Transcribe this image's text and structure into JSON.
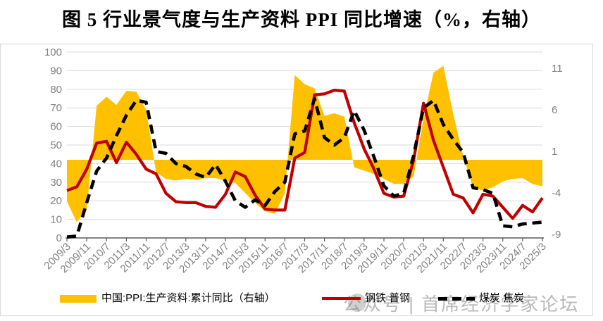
{
  "title": "图 5 行业景气度与生产资料 PPI 同比增速（%，右轴）",
  "watermark": {
    "text": "公众号 | 首席经济学家论坛"
  },
  "legend": [
    {
      "label": "中国:PPI:生产资料:累计同比（右轴）",
      "type": "area",
      "color": "#FFC000"
    },
    {
      "label": "钢铁 普钢",
      "type": "line",
      "color": "#C00000"
    },
    {
      "label": "煤炭 焦炭",
      "type": "dashed-line",
      "color": "#000000"
    }
  ],
  "chart_data": {
    "type": "combo",
    "title": "图 5 行业景气度与生产资料 PPI 同比增速（%，右轴）",
    "grid": true,
    "legend_position": "bottom",
    "x": [
      "2009/3",
      "2009/7",
      "2009/11",
      "2010/3",
      "2010/7",
      "2010/11",
      "2011/3",
      "2011/7",
      "2011/11",
      "2012/3",
      "2012/7",
      "2012/11",
      "2013/3",
      "2013/7",
      "2013/11",
      "2014/3",
      "2014/7",
      "2014/11",
      "2015/3",
      "2015/7",
      "2015/11",
      "2016/3",
      "2016/7",
      "2016/11",
      "2017/3",
      "2017/7",
      "2017/11",
      "2018/3",
      "2018/7",
      "2018/11",
      "2019/3",
      "2019/7",
      "2019/11",
      "2020/3",
      "2020/7",
      "2020/11",
      "2021/3",
      "2021/7",
      "2021/11",
      "2022/3",
      "2022/7",
      "2022/11",
      "2023/3",
      "2023/7",
      "2023/11",
      "2024/3",
      "2024/7",
      "2024/11",
      "2025/3"
    ],
    "x_tick_labels": [
      "2009/3",
      "2009/11",
      "2010/7",
      "2011/3",
      "2011/11",
      "2012/7",
      "2013/3",
      "2013/11",
      "2014/7",
      "2015/3",
      "2015/11",
      "2016/7",
      "2017/3",
      "2017/11",
      "2018/7",
      "2019/3",
      "2019/11",
      "2020/7",
      "2021/3",
      "2021/11",
      "2022/7",
      "2023/3",
      "2023/11",
      "2024/7",
      "2025/3"
    ],
    "left_axis": {
      "ticks": [
        100,
        90,
        80,
        70,
        60,
        50,
        40,
        30,
        20,
        10,
        0
      ],
      "range": [
        0,
        100
      ]
    },
    "right_axis": {
      "ticks": [
        11,
        6,
        1,
        -4,
        -9
      ],
      "range": [
        -9.8,
        13
      ]
    },
    "series": [
      {
        "name": "中国:PPI:生产资料:累计同比（右轴）",
        "type": "area",
        "axis": "right",
        "baseline": 0,
        "color": "#FFC000",
        "values": [
          -5.0,
          -7.5,
          -6.0,
          6.5,
          7.6,
          6.6,
          8.3,
          8.2,
          6.0,
          -1.5,
          -2.3,
          -2.5,
          -2.3,
          -2.4,
          -2.2,
          -2.2,
          -2.5,
          -2.8,
          -4.0,
          -5.2,
          -6.2,
          -6.5,
          -4.0,
          10.2,
          9.1,
          8.6,
          5.3,
          5.6,
          5.2,
          -0.9,
          -1.3,
          -1.7,
          -2.3,
          -2.9,
          -2.9,
          -2.0,
          5.0,
          10.5,
          11.3,
          5.5,
          0.5,
          -3.4,
          -3.7,
          -3.3,
          -2.6,
          -2.3,
          -2.2,
          -2.9,
          -3.2
        ]
      },
      {
        "name": "钢铁 普钢",
        "type": "line",
        "axis": "left",
        "color": "#C00000",
        "values": [
          25.5,
          27.5,
          37,
          51,
          52,
          40.5,
          51.5,
          45,
          37,
          34.5,
          24,
          19.5,
          19,
          19,
          17,
          16.5,
          23.5,
          35.5,
          33,
          23,
          15.5,
          15,
          15,
          43,
          46,
          77,
          77.5,
          79.5,
          79,
          62,
          48,
          37,
          24,
          22,
          22.5,
          42,
          72.5,
          52.5,
          38,
          23.5,
          21.5,
          13.5,
          23.5,
          22.5,
          16.5,
          10.5,
          17.5,
          14,
          21.5
        ]
      },
      {
        "name": "煤炭 焦炭",
        "type": "line",
        "dash": true,
        "axis": "left",
        "color": "#000000",
        "values": [
          0.5,
          1,
          19,
          36,
          43,
          55,
          66,
          74,
          73,
          46.5,
          45.5,
          40,
          38.5,
          34.5,
          32.5,
          39.5,
          30.5,
          20,
          16.5,
          20.5,
          17.5,
          25,
          30,
          56,
          57.5,
          75,
          54,
          50,
          54,
          68.5,
          58,
          43.5,
          28,
          22.5,
          24,
          44.5,
          70,
          74,
          61,
          53,
          46,
          27,
          26,
          24,
          6.5,
          6,
          7.5,
          8,
          8.5
        ]
      }
    ],
    "style": {
      "grid_color": "#D9D9D9",
      "axis_line_color": "#595959",
      "tick_label_color": "#808080"
    }
  }
}
